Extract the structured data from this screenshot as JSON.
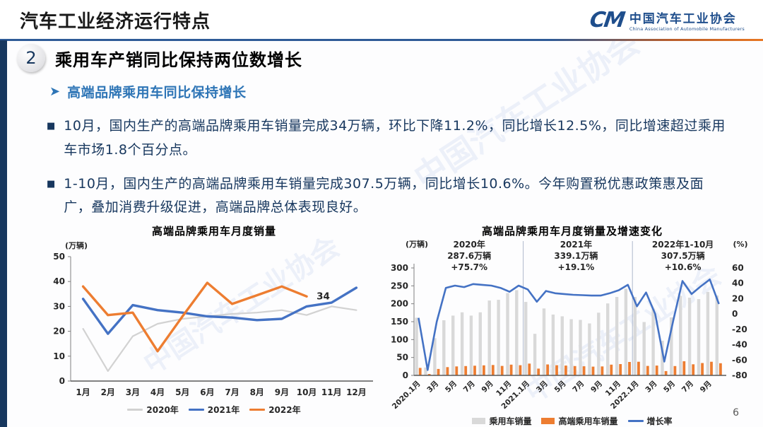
{
  "header": {
    "title": "汽车工业经济运行特点",
    "logo_mark": "CM",
    "logo_cn": "中国汽车工业协会",
    "logo_en": "China Association of Automobile Manufacturers"
  },
  "section": {
    "number": "2",
    "heading": "乘用车产销同比保持两位数增长",
    "subheading": "高端品牌乘用车同比保持增长",
    "bullet_marker": "■",
    "bullets": [
      "10月，国内生产的高端品牌乘用车销量完成34万辆，环比下降11.2%，同比增长12.5%，同比增速超过乘用车市场1.8个百分点。",
      "1-10月，国内生产的高端品牌乘用车销量完成307.5万辆，同比增长10.6%。今年购置税优惠政策惠及面广，叠加消费升级促进，高端品牌总体表现良好。"
    ]
  },
  "watermark": "中国汽车工业协会",
  "page_number": "6",
  "chart_data": [
    {
      "type": "line",
      "title": "高端品牌乘用车月度销量",
      "ylabel": "(万辆)",
      "ylim": [
        0,
        50
      ],
      "yticks": [
        0,
        10,
        20,
        30,
        40,
        50
      ],
      "categories": [
        "1月",
        "2月",
        "3月",
        "4月",
        "5月",
        "6月",
        "7月",
        "8月",
        "9月",
        "10月",
        "11月",
        "12月"
      ],
      "grid": false,
      "legend_position": "bottom",
      "series": [
        {
          "name": "2020年",
          "color": "#d2d2d2",
          "width": 2.2,
          "values": [
            21,
            4,
            18,
            23,
            25,
            26,
            27,
            27.5,
            28.5,
            26.5,
            30,
            28.5
          ]
        },
        {
          "name": "2021年",
          "color": "#4472c4",
          "width": 3.4,
          "values": [
            33,
            19,
            30.5,
            28.5,
            27.5,
            26,
            25.5,
            24.5,
            25,
            30,
            31.5,
            37.5
          ]
        },
        {
          "name": "2022年",
          "color": "#ed7d31",
          "width": 3.4,
          "values": [
            38,
            26.5,
            27.5,
            12,
            26,
            39.5,
            31,
            34.5,
            38,
            34
          ]
        }
      ],
      "annotation": {
        "text": "34",
        "series_index": 2,
        "point_index": 9
      }
    },
    {
      "type": "combo",
      "title": "高端品牌乘用车月度销量及增速变化",
      "ylabel_left": "(万辆)",
      "ylabel_right": "(%)",
      "ylim_left": [
        0,
        300
      ],
      "yticks_left": [
        0,
        50,
        100,
        150,
        200,
        250,
        300
      ],
      "ylim_right": [
        -80,
        60
      ],
      "yticks_right": [
        -80,
        -60,
        -40,
        -20,
        0,
        20,
        40,
        60
      ],
      "grid": false,
      "legend_position": "bottom",
      "categories": [
        "2020.1月",
        "2月",
        "3月",
        "4月",
        "5月",
        "6月",
        "7月",
        "8月",
        "9月",
        "10月",
        "11月",
        "12月",
        "2021.1月",
        "2月",
        "3月",
        "4月",
        "5月",
        "6月",
        "7月",
        "8月",
        "9月",
        "10月",
        "11月",
        "12月",
        "2022.1月",
        "2月",
        "3月",
        "4月",
        "5月",
        "6月",
        "7月",
        "8月",
        "9月",
        "10月"
      ],
      "label_every": 2,
      "divider_indices": [
        12,
        24
      ],
      "bars": [
        {
          "name": "乘用车销量",
          "color": "#d9d9d9",
          "values": [
            161,
            22,
            104,
            154,
            167,
            176,
            167,
            176,
            209,
            211,
            230,
            238,
            205,
            116,
            187,
            170,
            165,
            157,
            155,
            145,
            175,
            201,
            219,
            242,
            219,
            149,
            186,
            97,
            162,
            222,
            217,
            213,
            233,
            223
          ]
        },
        {
          "name": "高端乘用车销量",
          "color": "#ed7d31",
          "values": [
            21,
            4,
            18,
            23,
            25,
            26,
            27,
            28,
            29,
            26.5,
            30,
            28.5,
            33,
            19,
            30.5,
            28.5,
            27.5,
            26,
            25.5,
            24.5,
            25,
            30,
            31.5,
            37.5,
            38,
            26.5,
            27.5,
            12,
            26,
            39.5,
            31,
            34.5,
            38,
            34
          ]
        }
      ],
      "line": {
        "name": "增长率",
        "color": "#4472c4",
        "values": [
          -5,
          -73,
          -10,
          34,
          37,
          35,
          39,
          38,
          37,
          34,
          29,
          37,
          32,
          16,
          30,
          27,
          26,
          25,
          24.5,
          24,
          24,
          27,
          31,
          38,
          10,
          28,
          0,
          -62,
          -8,
          43,
          26,
          36,
          45,
          13
        ]
      },
      "annotations": [
        {
          "x_pct": 23,
          "lines": [
            "2020年",
            "287.6万辆",
            "+75.7%"
          ]
        },
        {
          "x_pct": 51,
          "lines": [
            "2021年",
            "339.1万辆",
            "+19.1%"
          ]
        },
        {
          "x_pct": 79,
          "lines": [
            "2022年1-10月",
            "307.5万辆",
            "+10.6%"
          ]
        }
      ]
    }
  ]
}
